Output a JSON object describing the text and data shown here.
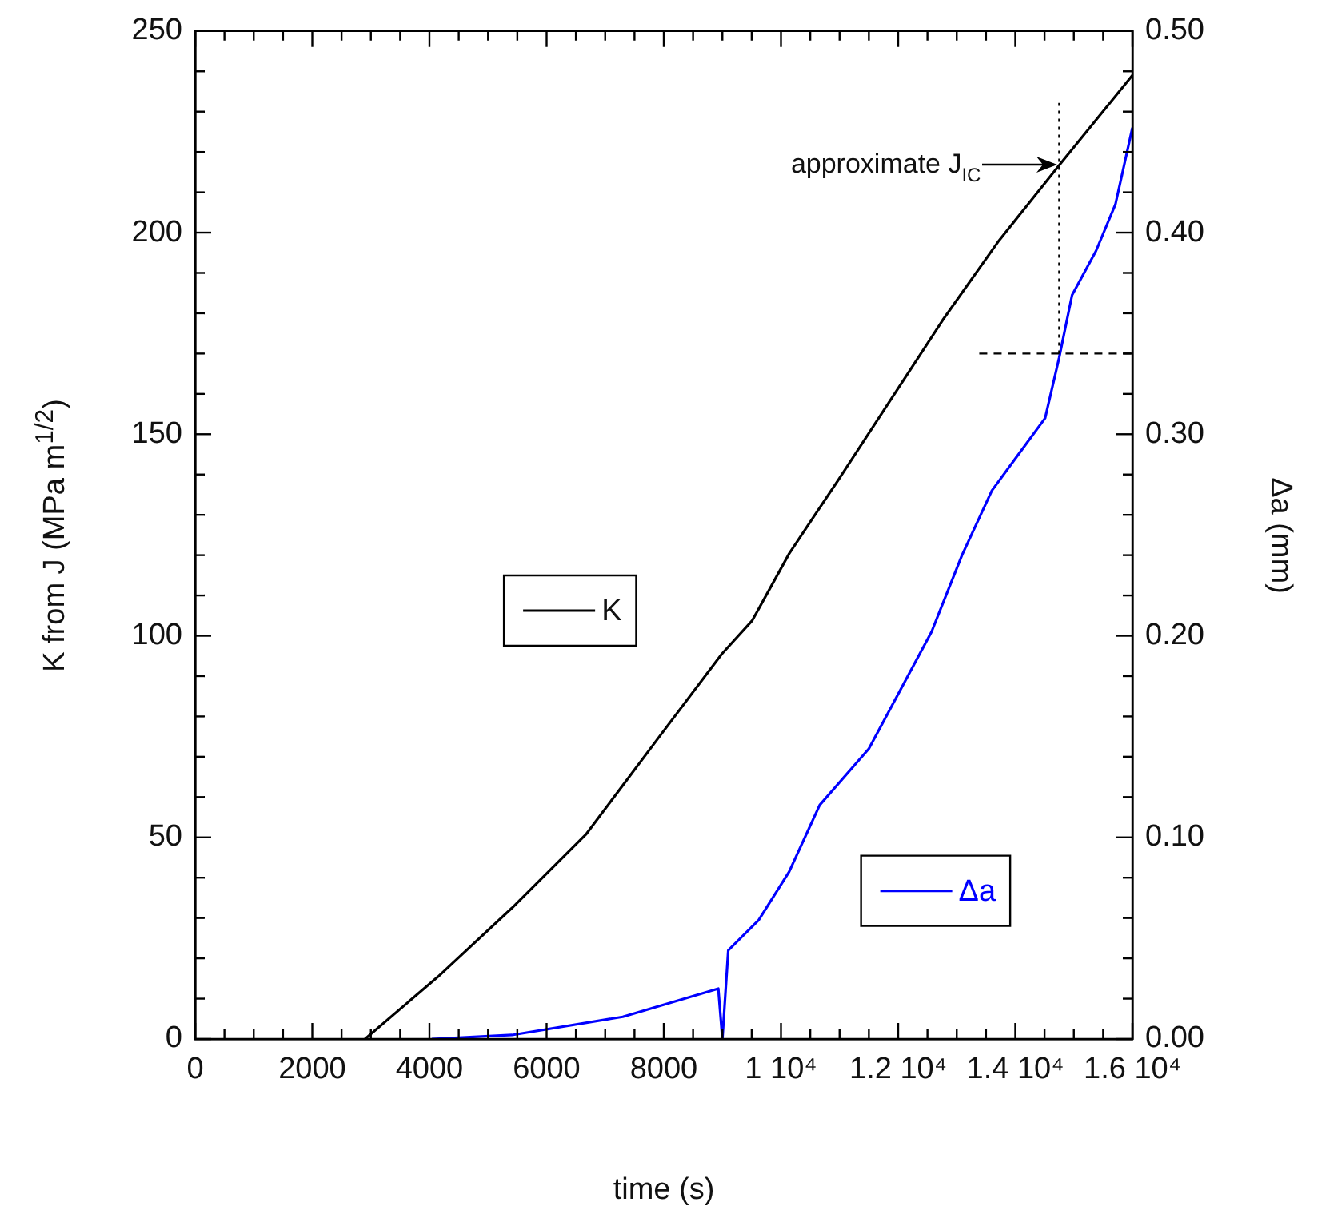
{
  "chart_data": {
    "type": "line",
    "xlabel": "time (s)",
    "ylabel": "K from J (MPa m$^{1/2}$)",
    "y2label": "Δa (mm)",
    "xlim": [
      0,
      16000
    ],
    "xticks": [
      0,
      {
        "value": 500,
        "label": null
      },
      {
        "value": 1000,
        "label": null
      },
      {
        "value": 1500,
        "label": null
      },
      2000,
      {
        "value": 2500,
        "label": null
      },
      {
        "value": 3000,
        "label": null
      },
      {
        "value": 3500,
        "label": null
      },
      4000,
      {
        "value": 4500,
        "label": null
      },
      {
        "value": 5000,
        "label": null
      },
      {
        "value": 5500,
        "label": null
      },
      6000,
      {
        "value": 6500,
        "label": null
      },
      {
        "value": 7000,
        "label": null
      },
      {
        "value": 7500,
        "label": null
      },
      8000,
      {
        "value": 8500,
        "label": null
      },
      {
        "value": 9000,
        "label": null
      },
      {
        "value": 9500,
        "label": null
      },
      {
        "value": 10000,
        "label": "1 10⁴"
      },
      {
        "value": 10500,
        "label": null
      },
      {
        "value": 11000,
        "label": null
      },
      {
        "value": 11500,
        "label": null
      },
      {
        "value": 12000,
        "label": "1.2 10⁴"
      },
      {
        "value": 12500,
        "label": null
      },
      {
        "value": 13000,
        "label": null
      },
      {
        "value": 13500,
        "label": null
      },
      {
        "value": 14000,
        "label": "1.4 10⁴"
      },
      {
        "value": 14500,
        "label": null
      },
      {
        "value": 15000,
        "label": null
      },
      {
        "value": 15500,
        "label": null
      },
      {
        "value": 16000,
        "label": "1.6 10⁴"
      }
    ],
    "ylim": [
      0,
      250
    ],
    "yticks": [
      0,
      {
        "value": 10,
        "label": null
      },
      {
        "value": 20,
        "label": null
      },
      {
        "value": 30,
        "label": null
      },
      {
        "value": 40,
        "label": null
      },
      50,
      {
        "value": 60,
        "label": null
      },
      {
        "value": 70,
        "label": null
      },
      {
        "value": 80,
        "label": null
      },
      {
        "value": 90,
        "label": null
      },
      100,
      {
        "value": 110,
        "label": null
      },
      {
        "value": 120,
        "label": null
      },
      {
        "value": 130,
        "label": null
      },
      {
        "value": 140,
        "label": null
      },
      150,
      {
        "value": 160,
        "label": null
      },
      {
        "value": 170,
        "label": null
      },
      {
        "value": 180,
        "label": null
      },
      {
        "value": 190,
        "label": null
      },
      200,
      {
        "value": 210,
        "label": null
      },
      {
        "value": 220,
        "label": null
      },
      {
        "value": 230,
        "label": null
      },
      {
        "value": 240,
        "label": null
      },
      250
    ],
    "y2lim": [
      0,
      0.5
    ],
    "y2ticks": [
      {
        "value": 0,
        "label": "0.00"
      },
      {
        "value": 0.02,
        "label": null
      },
      {
        "value": 0.04,
        "label": null
      },
      {
        "value": 0.06,
        "label": null
      },
      {
        "value": 0.08,
        "label": null
      },
      {
        "value": 0.1,
        "label": "0.10"
      },
      {
        "value": 0.12,
        "label": null
      },
      {
        "value": 0.14,
        "label": null
      },
      {
        "value": 0.16,
        "label": null
      },
      {
        "value": 0.18,
        "label": null
      },
      {
        "value": 0.2,
        "label": "0.20"
      },
      {
        "value": 0.22,
        "label": null
      },
      {
        "value": 0.24,
        "label": null
      },
      {
        "value": 0.26,
        "label": null
      },
      {
        "value": 0.28,
        "label": null
      },
      {
        "value": 0.3,
        "label": "0.30"
      },
      {
        "value": 0.32,
        "label": null
      },
      {
        "value": 0.34,
        "label": null
      },
      {
        "value": 0.36,
        "label": null
      },
      {
        "value": 0.38,
        "label": null
      },
      {
        "value": 0.4,
        "label": "0.40"
      },
      {
        "value": 0.42,
        "label": null
      },
      {
        "value": 0.44,
        "label": null
      },
      {
        "value": 0.46,
        "label": null
      },
      {
        "value": 0.48,
        "label": null
      },
      {
        "value": 0.5,
        "label": "0.50"
      }
    ],
    "grid": false,
    "legend": "center",
    "marker": "none",
    "line_style": "solid",
    "series": [
      {
        "name": "K",
        "color": "#000000",
        "x": [
          2900,
          4150,
          5410,
          6670,
          7920,
          8990,
          9510,
          10140,
          10980,
          12760,
          13720,
          14750,
          16000
        ],
        "values": [
          0,
          15.5,
          32.5,
          50.7,
          74.9,
          95.5,
          103.8,
          120.4,
          138.7,
          178.3,
          198,
          216.7,
          239
        ]
      },
      {
        "name": "Δa",
        "color": "#0000ff",
        "axis": "y2",
        "x": [
          4040,
          5410,
          7300,
          8930,
          9000,
          9100,
          9620,
          10140,
          10660,
          11500,
          12570,
          13090,
          13600,
          14130,
          14510,
          14750,
          14970,
          15380,
          15710,
          16000
        ],
        "values": [
          0,
          0.002,
          0.011,
          0.025,
          0,
          0.044,
          0.059,
          0.083,
          0.116,
          0.144,
          0.202,
          0.24,
          0.272,
          0.293,
          0.308,
          0.338,
          0.369,
          0.391,
          0.414,
          0.452
        ]
      }
    ],
    "ref_lines": [
      {
        "axis": "x",
        "value": 14750,
        "line_style": "dotted",
        "color": "#000000"
      },
      {
        "axis": "y2",
        "value": 0.34,
        "line_style": "dashed",
        "color": "#000000"
      }
    ],
    "annotations": [
      {
        "text": "approximate J$_{IC}$",
        "x": 14750,
        "y": 216.7
      }
    ]
  }
}
